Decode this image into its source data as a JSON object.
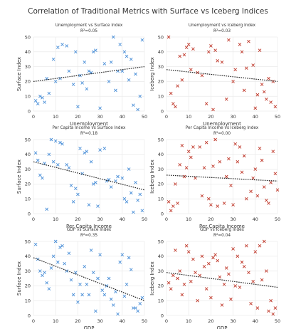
{
  "figure": {
    "title": "Correlation of Traditional Metrics with Surface vs Iceberg Indices"
  },
  "colors": {
    "surface": "#4a8fd8",
    "iceberg": "#c0392b",
    "trend": "#222222",
    "grid": "#e6e6e6"
  },
  "chart_data": [
    {
      "type": "scatter",
      "title": "Unemployment vs Surface Index",
      "subtitle": "R²=0.05",
      "xlabel": "Unemployment",
      "ylabel": "Surface Index",
      "xlim": [
        0,
        50
      ],
      "ylim": [
        0,
        50
      ],
      "xticks": [
        0,
        10,
        20,
        30,
        40,
        50
      ],
      "yticks": [
        0,
        10,
        20,
        30,
        40,
        50
      ],
      "marker": "x",
      "color_key": "surface",
      "x": [
        1,
        2,
        3,
        4,
        5,
        6,
        7,
        9,
        10,
        11,
        12,
        13,
        15,
        16,
        18,
        19,
        20,
        21,
        22,
        23,
        24,
        25,
        26,
        27,
        28,
        30,
        32,
        34,
        35,
        36,
        37,
        38,
        39,
        40,
        41,
        42,
        43,
        44,
        45,
        46,
        47,
        48,
        49
      ],
      "y": [
        7,
        5,
        10,
        9,
        6,
        22,
        12,
        35,
        20,
        43,
        22,
        45,
        44,
        27,
        18,
        40,
        3,
        24,
        19,
        33,
        15,
        27,
        26,
        40,
        41,
        2,
        32,
        20,
        33,
        50,
        14,
        27,
        45,
        27,
        40,
        37,
        21,
        35,
        4,
        25,
        1,
        10,
        48
      ],
      "trend": {
        "x": [
          0,
          50
        ],
        "y": [
          20,
          30
        ]
      }
    },
    {
      "type": "scatter",
      "title": "Unemployment vs Iceberg Index",
      "subtitle": "R²=0.03",
      "xlabel": "Unemployment",
      "ylabel": "Iceberg Index",
      "xlim": [
        0,
        50
      ],
      "ylim": [
        0,
        50
      ],
      "xticks": [
        0,
        10,
        20,
        30,
        40,
        50
      ],
      "yticks": [
        0,
        10,
        20,
        30,
        40,
        50
      ],
      "marker": "x",
      "color_key": "iceberg",
      "x": [
        1,
        2,
        3,
        4,
        5,
        6,
        7,
        8,
        9,
        10,
        11,
        12,
        14,
        16,
        18,
        19,
        20,
        21,
        22,
        23,
        25,
        27,
        28,
        30,
        31,
        33,
        34,
        35,
        36,
        37,
        39,
        40,
        41,
        42,
        43,
        44,
        45,
        46,
        47,
        48,
        49
      ],
      "y": [
        50,
        12,
        5,
        3,
        17,
        37,
        21,
        38,
        43,
        45,
        28,
        42,
        26,
        24,
        5,
        40,
        44,
        1,
        41,
        34,
        33,
        8,
        48,
        20,
        28,
        45,
        40,
        14,
        29,
        47,
        31,
        2,
        11,
        41,
        18,
        13,
        8,
        22,
        6,
        20,
        3
      ],
      "trend": {
        "x": [
          0,
          50
        ],
        "y": [
          28,
          20
        ]
      }
    },
    {
      "type": "scatter",
      "title": "Per Capita Income vs Surface Index",
      "subtitle": "R²=0.18",
      "xlabel": "Per Capita Income",
      "ylabel": "Surface Index",
      "xlim": [
        0,
        50
      ],
      "ylim": [
        0,
        50
      ],
      "xticks": [
        0,
        10,
        20,
        30,
        40,
        50
      ],
      "yticks": [
        0,
        10,
        20,
        30,
        40,
        50
      ],
      "marker": "x",
      "color_key": "surface",
      "x": [
        1,
        2,
        3,
        4,
        5,
        6,
        7,
        8,
        9,
        10,
        11,
        12,
        13,
        15,
        16,
        17,
        18,
        19,
        20,
        21,
        22,
        23,
        24,
        25,
        26,
        27,
        28,
        29,
        30,
        32,
        33,
        34,
        35,
        37,
        38,
        40,
        41,
        42,
        43,
        44,
        45,
        46,
        47,
        48,
        49
      ],
      "y": [
        41,
        36,
        26,
        24,
        34,
        3,
        40,
        50,
        35,
        49,
        33,
        48,
        47,
        33,
        31,
        19,
        8,
        17,
        13,
        44,
        27,
        41,
        42,
        6,
        35,
        20,
        21,
        5,
        43,
        44,
        22,
        23,
        18,
        22,
        25,
        24,
        10,
        8,
        30,
        14,
        1,
        21,
        9,
        13,
        2
      ],
      "trend": {
        "x": [
          0,
          50
        ],
        "y": [
          35,
          16
        ]
      }
    },
    {
      "type": "scatter",
      "title": "Per Capita Income vs Iceberg Index",
      "subtitle": "R²=0.00",
      "xlabel": "Per Capita Income",
      "ylabel": "Iceberg Index",
      "xlim": [
        0,
        50
      ],
      "ylim": [
        0,
        50
      ],
      "xticks": [
        0,
        10,
        20,
        30,
        40,
        50
      ],
      "yticks": [
        0,
        10,
        20,
        30,
        40,
        50
      ],
      "marker": "x",
      "color_key": "iceberg",
      "x": [
        1,
        2,
        3,
        4,
        5,
        6,
        7,
        8,
        9,
        10,
        11,
        12,
        13,
        15,
        16,
        17,
        18,
        19,
        20,
        21,
        22,
        23,
        24,
        26,
        27,
        28,
        29,
        30,
        31,
        32,
        33,
        34,
        35,
        36,
        38,
        39,
        40,
        41,
        42,
        43,
        44,
        45,
        46,
        47,
        48,
        49,
        50
      ],
      "y": [
        8,
        2,
        5,
        20,
        7,
        33,
        46,
        25,
        31,
        42,
        38,
        45,
        24,
        45,
        12,
        31,
        48,
        10,
        6,
        32,
        50,
        5,
        35,
        7,
        25,
        37,
        19,
        6,
        47,
        35,
        45,
        28,
        39,
        10,
        15,
        24,
        30,
        12,
        44,
        36,
        18,
        9,
        7,
        21,
        42,
        27,
        16
      ],
      "trend": {
        "x": [
          0,
          50
        ],
        "y": [
          26,
          22
        ]
      }
    },
    {
      "type": "scatter",
      "title": "GDP vs Surface Index",
      "subtitle": "R²=0.35",
      "xlabel": "GDP",
      "ylabel": "Surface Index",
      "xlim": [
        0,
        50
      ],
      "ylim": [
        0,
        50
      ],
      "xticks": [
        0,
        10,
        20,
        30,
        40,
        50
      ],
      "yticks": [
        0,
        10,
        20,
        30,
        40,
        50
      ],
      "marker": "x",
      "color_key": "surface",
      "x": [
        1,
        2,
        3,
        4,
        5,
        6,
        7,
        8,
        9,
        10,
        11,
        12,
        13,
        14,
        15,
        16,
        17,
        18,
        19,
        20,
        21,
        22,
        23,
        24,
        25,
        26,
        27,
        28,
        29,
        30,
        31,
        32,
        33,
        34,
        35,
        36,
        37,
        38,
        39,
        40,
        41,
        42,
        43,
        44,
        45,
        46,
        47,
        48,
        49
      ],
      "y": [
        48,
        38,
        30,
        27,
        29,
        22,
        18,
        32,
        40,
        50,
        36,
        46,
        47,
        35,
        30,
        42,
        24,
        14,
        29,
        9,
        21,
        14,
        33,
        21,
        14,
        44,
        29,
        3,
        25,
        41,
        17,
        14,
        20,
        25,
        11,
        7,
        16,
        1,
        36,
        41,
        13,
        21,
        39,
        31,
        5,
        5,
        3,
        8,
        12
      ],
      "trend": {
        "x": [
          0,
          50
        ],
        "y": [
          39,
          10
        ]
      }
    },
    {
      "type": "scatter",
      "title": "GDP vs Iceberg Index",
      "subtitle": "R²=0.04",
      "xlabel": "GDP",
      "ylabel": "Iceberg Index",
      "xlim": [
        0,
        50
      ],
      "ylim": [
        0,
        50
      ],
      "xticks": [
        0,
        10,
        20,
        30,
        40,
        50
      ],
      "yticks": [
        0,
        10,
        20,
        30,
        40,
        50
      ],
      "marker": "x",
      "color_key": "iceberg",
      "x": [
        1,
        2,
        3,
        4,
        5,
        6,
        7,
        8,
        9,
        10,
        11,
        12,
        13,
        14,
        15,
        16,
        17,
        18,
        19,
        20,
        21,
        22,
        23,
        24,
        25,
        26,
        27,
        28,
        29,
        30,
        31,
        32,
        33,
        34,
        35,
        36,
        37,
        38,
        39,
        40,
        41,
        42,
        43,
        44,
        45,
        46,
        47,
        48,
        49
      ],
      "y": [
        22,
        18,
        27,
        44,
        25,
        30,
        14,
        21,
        47,
        43,
        23,
        38,
        29,
        10,
        27,
        40,
        33,
        18,
        35,
        12,
        39,
        41,
        37,
        26,
        7,
        21,
        32,
        28,
        11,
        45,
        20,
        40,
        19,
        36,
        33,
        47,
        29,
        8,
        23,
        43,
        5,
        47,
        24,
        50,
        30,
        3,
        10,
        1,
        5
      ],
      "trend": {
        "x": [
          0,
          50
        ],
        "y": [
          29,
          19
        ]
      }
    }
  ]
}
